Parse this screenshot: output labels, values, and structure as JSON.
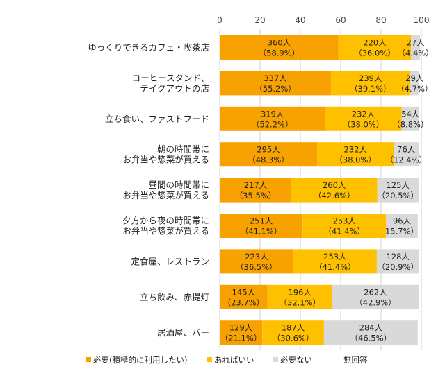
{
  "chart_data": {
    "type": "bar",
    "orientation": "horizontal",
    "stacked": true,
    "xlim": [
      0,
      100
    ],
    "x_ticks": [
      "0",
      "20",
      "40",
      "60",
      "80",
      "100"
    ],
    "grid": true,
    "legend_position": "bottom",
    "categories": [
      [
        "ゆっくりできるカフェ・喫茶店"
      ],
      [
        "コーヒースタンド、",
        "テイクアウトの店"
      ],
      [
        "立ち食い、ファストフード"
      ],
      [
        "朝の時間帯に",
        "お弁当や惣菜が買える"
      ],
      [
        "昼間の時間帯に",
        "お弁当や惣菜が買える"
      ],
      [
        "夕方から夜の時間帯に",
        "お弁当や惣菜が買える"
      ],
      [
        "定食屋、レストラン"
      ],
      [
        "立ち飲み、赤提灯"
      ],
      [
        "居酒屋、バー"
      ]
    ],
    "series": [
      {
        "name": "必要(積極的に利用したい)",
        "color": "#f7a200",
        "values": [
          58.9,
          55.2,
          52.2,
          48.3,
          35.5,
          41.1,
          36.5,
          23.7,
          21.1
        ],
        "labels": [
          [
            "360人",
            "（58.9%）"
          ],
          [
            "337人",
            "（55.2%）"
          ],
          [
            "319人",
            "（52.2%）"
          ],
          [
            "295人",
            "（48.3%）"
          ],
          [
            "217人",
            "（35.5%）"
          ],
          [
            "251人",
            "（41.1%）"
          ],
          [
            "223人",
            "（36.5%）"
          ],
          [
            "145人",
            "（23.7%）"
          ],
          [
            "129人",
            "（21.1%）"
          ]
        ]
      },
      {
        "name": "あればいい",
        "color": "#ffc000",
        "values": [
          36.0,
          39.1,
          38.0,
          38.0,
          42.6,
          41.4,
          41.4,
          32.1,
          30.6
        ],
        "labels": [
          [
            "220人",
            "（36.0%）"
          ],
          [
            "239人",
            "（39.1%）"
          ],
          [
            "232人",
            "（38.0%）"
          ],
          [
            "232人",
            "（38.0%）"
          ],
          [
            "260人",
            "（42.6%）"
          ],
          [
            "253人",
            "（41.4%）"
          ],
          [
            "253人",
            "（41.4%）"
          ],
          [
            "196人",
            "（32.1%）"
          ],
          [
            "187人",
            "（30.6%）"
          ]
        ]
      },
      {
        "name": "必要ない",
        "color": "#d9d9d9",
        "values": [
          4.4,
          4.7,
          8.8,
          12.4,
          20.5,
          15.7,
          20.9,
          42.9,
          46.5
        ],
        "labels": [
          [
            "27人",
            "（4.4%）"
          ],
          [
            "29人",
            "（4.7%）"
          ],
          [
            "54人",
            "（8.8%）"
          ],
          [
            "76人",
            "（12.4%）"
          ],
          [
            "125人",
            "（20.5%）"
          ],
          [
            "96人",
            "15.7%）"
          ],
          [
            "128人",
            "（20.9%）"
          ],
          [
            "262人",
            "（42.9%）"
          ],
          [
            "284人",
            "（46.5%）"
          ]
        ]
      },
      {
        "name": "無回答",
        "color": "#ffffff",
        "values": [
          0,
          0,
          0,
          0,
          0,
          0,
          0,
          0,
          0
        ],
        "labels": []
      }
    ]
  }
}
